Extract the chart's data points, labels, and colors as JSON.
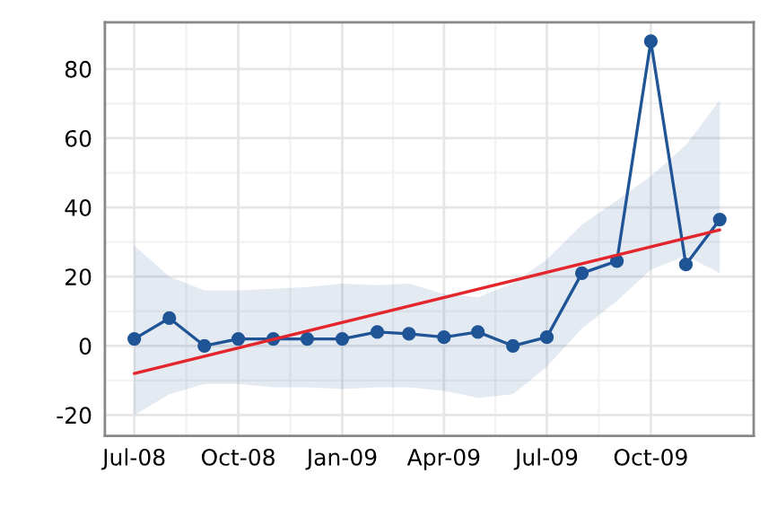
{
  "chart_data": {
    "type": "line",
    "x": [
      "2008-07-01",
      "2008-08-01",
      "2008-09-01",
      "2008-10-01",
      "2008-11-01",
      "2008-12-01",
      "2009-01-01",
      "2009-02-01",
      "2009-03-01",
      "2009-04-01",
      "2009-05-01",
      "2009-06-01",
      "2009-07-01",
      "2009-08-01",
      "2009-09-01",
      "2009-10-01",
      "2009-11-01",
      "2009-12-01"
    ],
    "series": [
      {
        "color": "#1f5596",
        "marker": "circle",
        "values": [
          2,
          8,
          0,
          2,
          2,
          2,
          2,
          4,
          3.5,
          2.5,
          4,
          0,
          2.5,
          21,
          24.5,
          88,
          23.5,
          36.5
        ],
        "lower": [
          -20,
          -14,
          -11,
          -11,
          -12,
          -12,
          -12.5,
          -12,
          -12,
          -13,
          -15,
          -14,
          -6,
          5,
          13,
          22,
          26,
          21
        ],
        "upper": [
          29,
          20,
          16,
          16,
          16.5,
          17,
          18,
          17.5,
          18,
          15,
          14,
          18,
          25,
          35,
          42,
          49,
          58,
          71
        ]
      },
      {
        "type": "line",
        "color": "#e3262b",
        "marker": "none",
        "x": [
          "2008-07-01",
          "2009-12-01"
        ],
        "values": [
          -8,
          33.5
        ]
      }
    ],
    "xlim": [
      "2008-06-05",
      "2009-12-31"
    ],
    "xticks": [
      {
        "value": "2008-07-01",
        "label": "Jul-08"
      },
      {
        "value": "2008-10-01",
        "label": "Oct-08"
      },
      {
        "value": "2009-01-01",
        "label": "Jan-09"
      },
      {
        "value": "2009-04-01",
        "label": "Apr-09"
      },
      {
        "value": "2009-07-01",
        "label": "Jul-09"
      },
      {
        "value": "2009-10-01",
        "label": "Oct-09"
      }
    ],
    "ylim": [
      -26,
      93.5
    ],
    "yticks": [
      -20,
      0,
      20,
      40,
      60,
      80
    ],
    "grid": true,
    "line_style": "solid"
  }
}
